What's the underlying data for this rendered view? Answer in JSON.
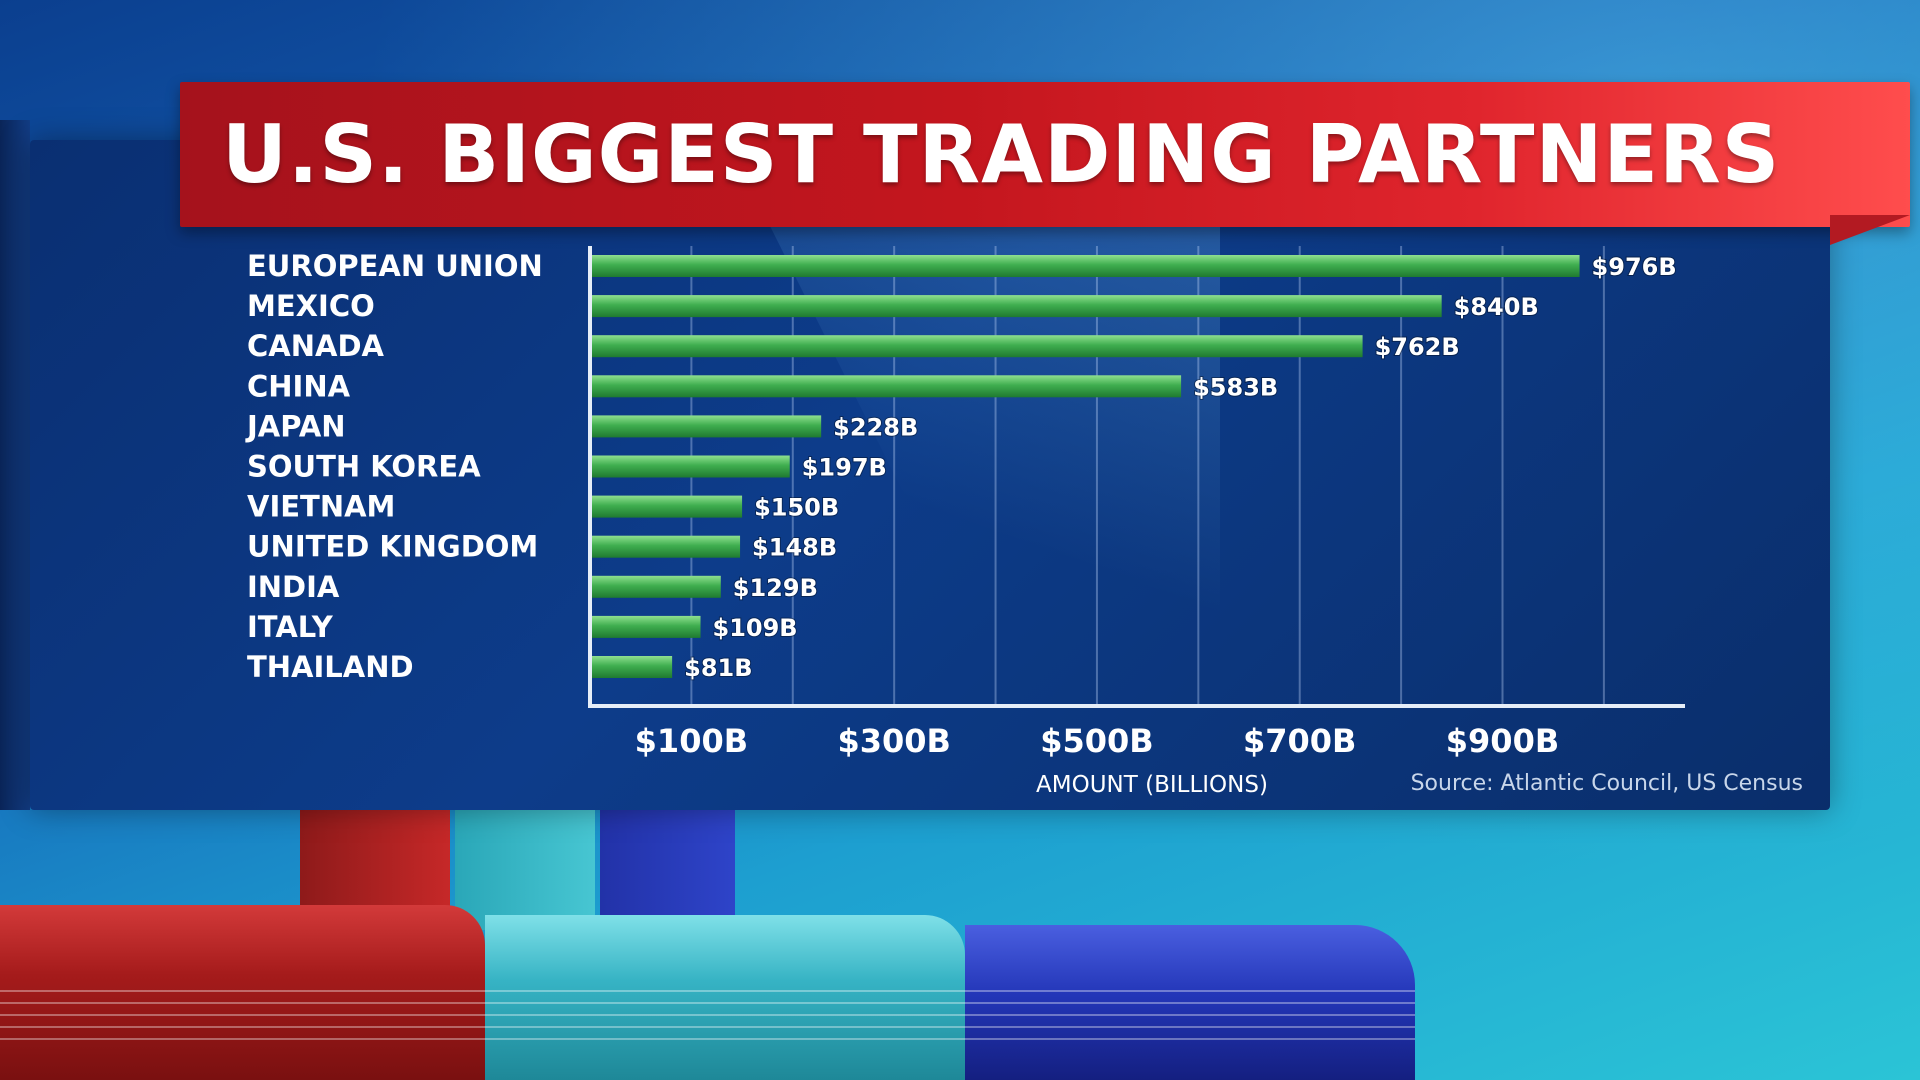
{
  "title": "U.S. BIGGEST TRADING PARTNERS",
  "colors": {
    "bar": "#3fae4f",
    "banner": "#c4161e",
    "panel": "#0d3c8a"
  },
  "chart_data": {
    "type": "bar",
    "orientation": "horizontal",
    "title": "U.S. BIGGEST TRADING PARTNERS",
    "categories": [
      "EUROPEAN UNION",
      "MEXICO",
      "CANADA",
      "CHINA",
      "JAPAN",
      "SOUTH KOREA",
      "VIETNAM",
      "UNITED KINGDOM",
      "INDIA",
      "ITALY",
      "THAILAND"
    ],
    "values": [
      976,
      840,
      762,
      583,
      228,
      197,
      150,
      148,
      129,
      109,
      81
    ],
    "data_labels": [
      "$976B",
      "$840B",
      "$762B",
      "$583B",
      "$228B",
      "$197B",
      "$150B",
      "$148B",
      "$129B",
      "$109B",
      "$81B"
    ],
    "x_ticks": [
      100,
      300,
      500,
      700,
      900
    ],
    "x_tick_labels": [
      "$100B",
      "$300B",
      "$500B",
      "$700B",
      "$900B"
    ],
    "xlim": [
      0,
      1080
    ],
    "xlabel": "AMOUNT (BILLIONS)",
    "ylabel": "",
    "grid": true,
    "source": "Source: Atlantic Council, US Census"
  }
}
